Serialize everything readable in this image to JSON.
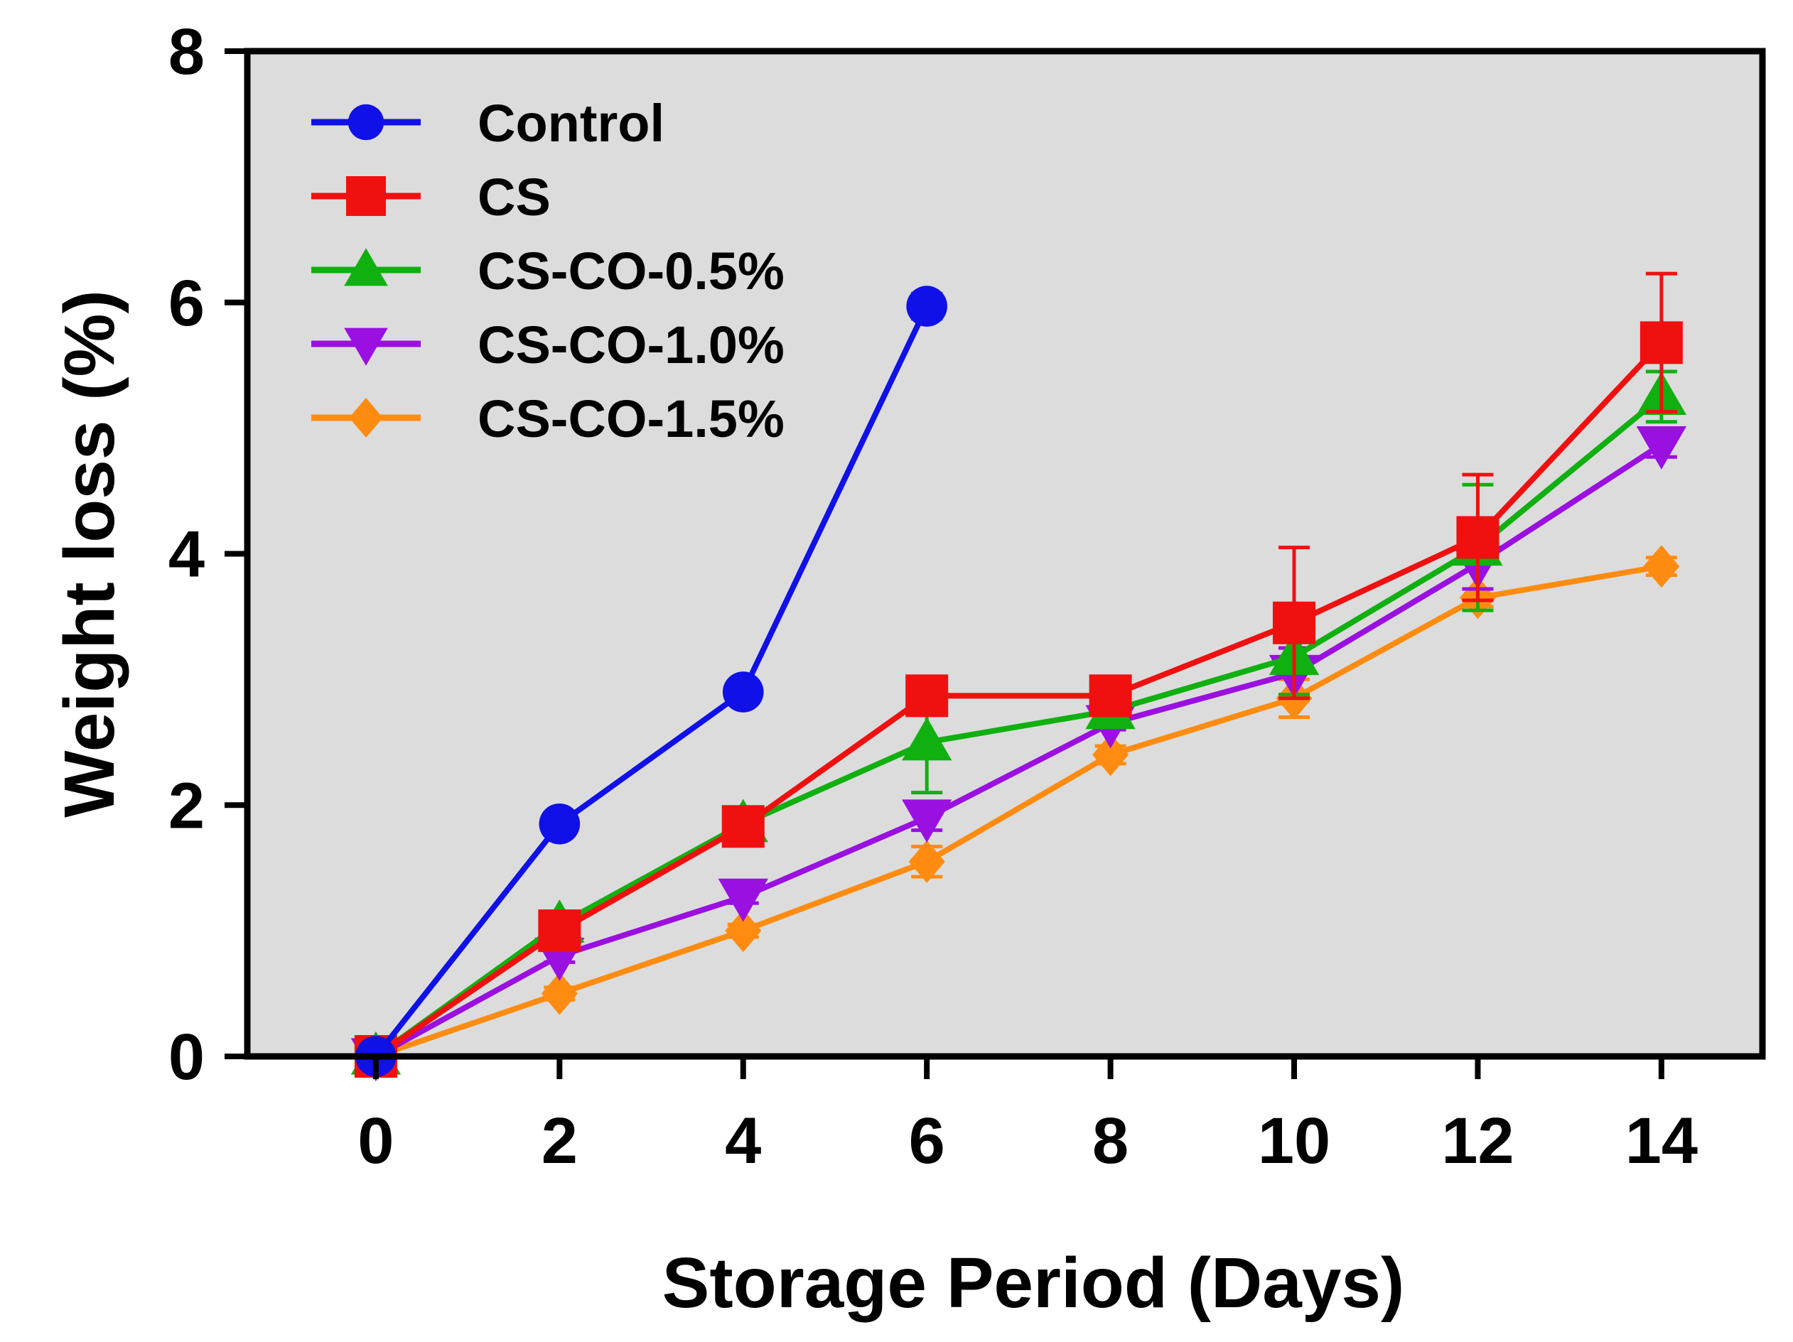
{
  "chart_data": {
    "type": "line",
    "title": "",
    "xlabel": "Storage Period (Days)",
    "ylabel": "Weight loss (%)",
    "xlim": [
      -1.4,
      15.1
    ],
    "ylim": [
      0,
      8
    ],
    "xticks": [
      0,
      2,
      4,
      6,
      8,
      10,
      12,
      14
    ],
    "yticks": [
      0,
      2,
      4,
      6,
      8
    ],
    "grid": false,
    "plot_background": "#dcdcdc",
    "legend_position": "top-left",
    "series": [
      {
        "name": "Control",
        "color": "#1010e8",
        "marker": "circle",
        "x": [
          0,
          2,
          4,
          6
        ],
        "y": [
          0,
          1.85,
          2.9,
          5.97
        ],
        "err": [
          0,
          0.05,
          0.05,
          0.1
        ]
      },
      {
        "name": "CS",
        "color": "#f01010",
        "marker": "square",
        "x": [
          0,
          2,
          4,
          6,
          8,
          10,
          12,
          14
        ],
        "y": [
          0,
          1.0,
          1.83,
          2.87,
          2.87,
          3.45,
          4.13,
          5.68
        ],
        "err": [
          0,
          0.05,
          0.05,
          0.08,
          0.05,
          0.6,
          0.5,
          0.55
        ]
      },
      {
        "name": "CS-CO-0.5%",
        "color": "#10b010",
        "marker": "triangle-up",
        "x": [
          0,
          2,
          4,
          6,
          8,
          10,
          12,
          14
        ],
        "y": [
          0,
          1.05,
          1.85,
          2.5,
          2.75,
          3.18,
          4.05,
          5.25
        ],
        "err": [
          0,
          0.05,
          0.05,
          0.4,
          0.05,
          0.3,
          0.5,
          0.2
        ]
      },
      {
        "name": "CS-CO-1.0%",
        "color": "#9a10e0",
        "marker": "triangle-down",
        "x": [
          0,
          2,
          4,
          6,
          8,
          10,
          12,
          14
        ],
        "y": [
          0,
          0.8,
          1.27,
          1.9,
          2.65,
          3.05,
          3.92,
          4.87
        ],
        "err": [
          0,
          0.05,
          0.05,
          0.1,
          0.05,
          0.2,
          0.2,
          0.1
        ]
      },
      {
        "name": "CS-CO-1.5%",
        "color": "#ff8c10",
        "marker": "diamond",
        "x": [
          0,
          2,
          4,
          6,
          8,
          10,
          12,
          14
        ],
        "y": [
          0,
          0.5,
          1.0,
          1.55,
          2.4,
          2.85,
          3.65,
          3.9
        ],
        "err": [
          0,
          0.05,
          0.05,
          0.12,
          0.07,
          0.15,
          0.07,
          0.07
        ]
      }
    ]
  }
}
